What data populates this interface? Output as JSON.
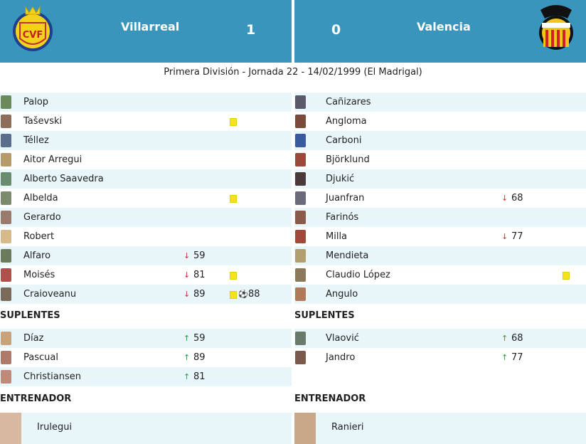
{
  "match": {
    "home_team": "Villarreal",
    "away_team": "Valencia",
    "home_score": "1",
    "away_score": "0",
    "info": "Primera División - Jornada 22 - 14/02/1999 (El Madrigal)"
  },
  "colors": {
    "header": "#3a95bd",
    "row_shade": "#e8f6f9",
    "card": "#f4e21c",
    "sub_out": "#d23030",
    "sub_in": "#2a9a3a"
  },
  "home": {
    "starters": [
      {
        "name": "Palop"
      },
      {
        "name": "Taševski",
        "card": true
      },
      {
        "name": "Téllez"
      },
      {
        "name": "Aitor Arregui"
      },
      {
        "name": "Alberto Saavedra"
      },
      {
        "name": "Albelda",
        "card": true
      },
      {
        "name": "Gerardo"
      },
      {
        "name": "Robert"
      },
      {
        "name": "Alfaro",
        "sub": "59"
      },
      {
        "name": "Moisés",
        "sub": "81",
        "card": true
      },
      {
        "name": "Craioveanu",
        "sub": "89",
        "card": true,
        "goal": "88"
      }
    ],
    "subs_title": "SUPLENTES",
    "subs": [
      {
        "name": "Díaz",
        "in": "59"
      },
      {
        "name": "Pascual",
        "in": "89"
      },
      {
        "name": "Christiansen",
        "in": "81"
      }
    ],
    "coach_title": "ENTRENADOR",
    "coach": "Irulegui"
  },
  "away": {
    "starters": [
      {
        "name": "Cañizares"
      },
      {
        "name": "Angloma"
      },
      {
        "name": "Carboni"
      },
      {
        "name": "Björklund"
      },
      {
        "name": "Djukić"
      },
      {
        "name": "Juanfran",
        "sub": "68"
      },
      {
        "name": "Farinós"
      },
      {
        "name": "Milla",
        "sub": "77"
      },
      {
        "name": "Mendieta"
      },
      {
        "name": "Claudio López",
        "card": true
      },
      {
        "name": "Angulo"
      }
    ],
    "subs_title": "SUPLENTES",
    "subs": [
      {
        "name": "Vlaović",
        "in": "68"
      },
      {
        "name": "Jandro",
        "in": "77"
      }
    ],
    "coach_title": "ENTRENADOR",
    "coach": "Ranieri"
  },
  "icons": {
    "sub_out": "arrow-down-icon",
    "sub_in": "arrow-up-icon",
    "card": "yellow-card-icon",
    "goal": "soccer-ball-icon"
  }
}
